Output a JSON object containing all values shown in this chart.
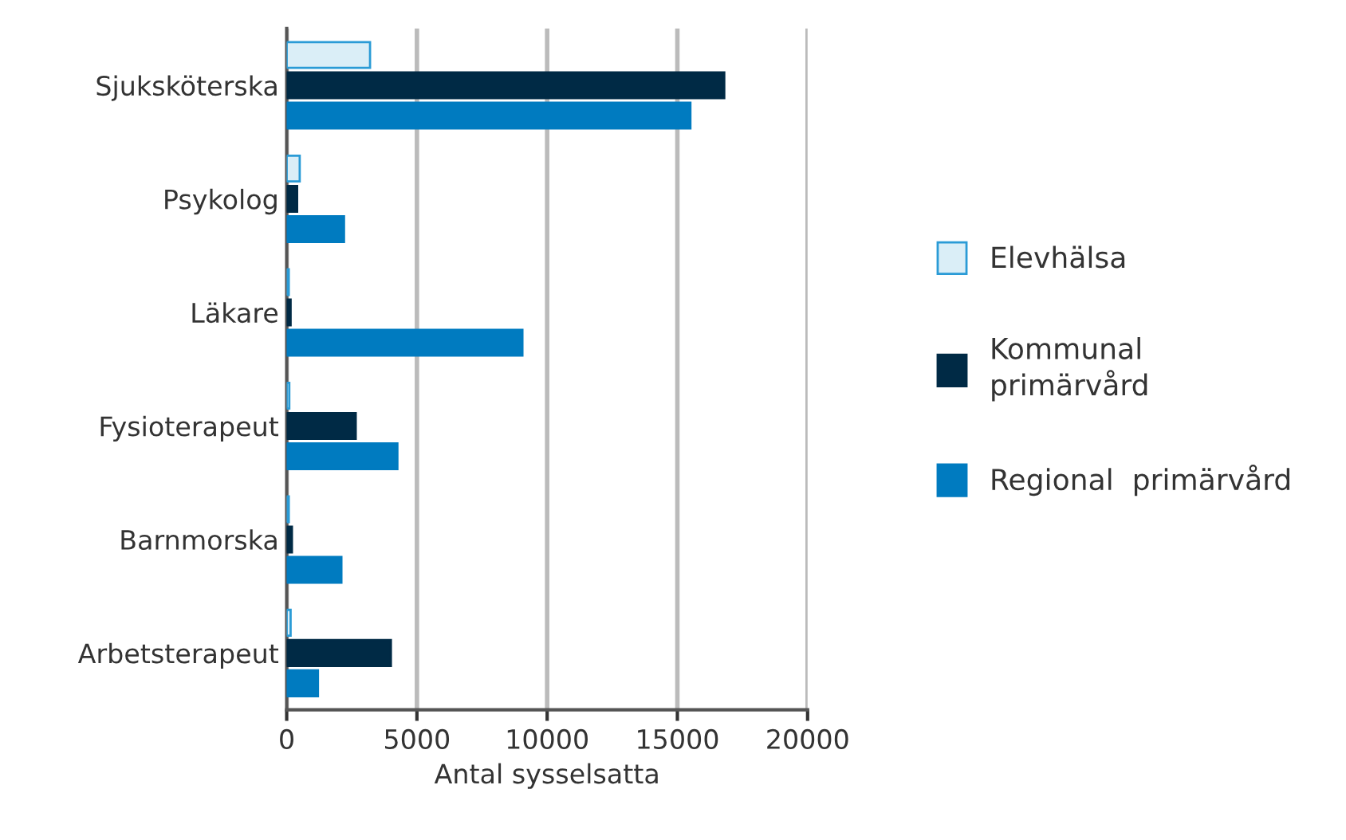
{
  "chart_data": {
    "type": "bar",
    "orientation": "horizontal",
    "categories": [
      "Sjuksköterska",
      "Psykolog",
      "Läkare",
      "Fysioterapeut",
      "Barnmorska",
      "Arbetsterapeut"
    ],
    "series": [
      {
        "name": "Elevhälsa",
        "color": "#daeef7",
        "values": [
          3200,
          500,
          80,
          100,
          80,
          150
        ]
      },
      {
        "name": "Kommunal\nprimärvård",
        "color": "#002a45",
        "values": [
          16800,
          400,
          150,
          2650,
          200,
          4000
        ]
      },
      {
        "name": "Regional  primärvård",
        "color": "#007bc0",
        "values": [
          15500,
          2200,
          9050,
          4250,
          2100,
          1200
        ]
      }
    ],
    "xlabel": "Antal sysselsatta",
    "xlim": [
      0,
      20000
    ],
    "xticks": [
      0,
      5000,
      10000,
      15000,
      20000
    ],
    "grid": "x",
    "legend": "right"
  }
}
